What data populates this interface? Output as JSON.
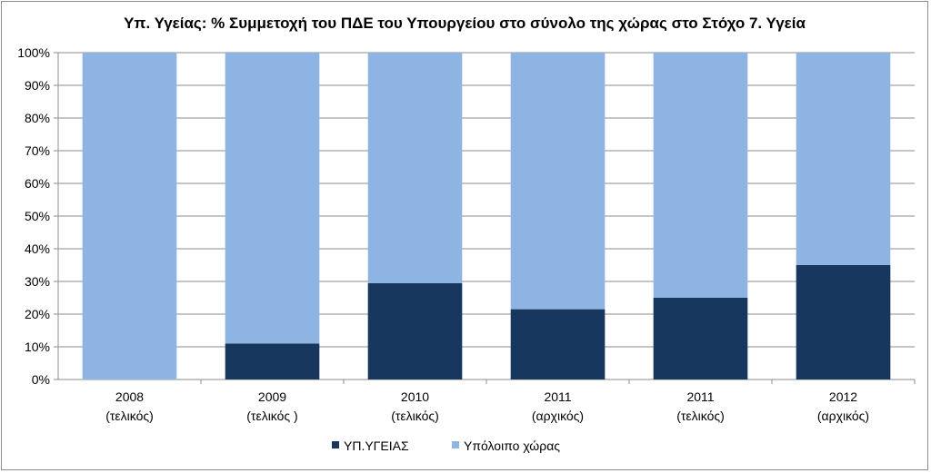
{
  "chart_data": {
    "type": "bar",
    "stacked": true,
    "percent_stacked": true,
    "title": "Υπ. Υγείας: % Συμμετοχή του ΠΔΕ του Υπουργείου στο σύνολο της χώρας στο Στόχο 7. Υγεία",
    "categories": [
      [
        "2008",
        "(τελικός)"
      ],
      [
        "2009",
        "(τελικός )"
      ],
      [
        "2010",
        "(τελικός)"
      ],
      [
        "2011",
        "(αρχικός)"
      ],
      [
        "2011",
        "(τελικός)"
      ],
      [
        "2012",
        "(αρχικός)"
      ]
    ],
    "series": [
      {
        "name": "ΥΠ.ΥΓΕΙΑΣ",
        "color": "#17375e",
        "values": [
          0,
          11,
          29.5,
          21.5,
          25,
          35
        ]
      },
      {
        "name": "Υπόλοιπο χώρας",
        "color": "#8eb4e3",
        "values": [
          100,
          89,
          70.5,
          78.5,
          75,
          65
        ]
      }
    ],
    "y_ticks": [
      "0%",
      "10%",
      "20%",
      "30%",
      "40%",
      "50%",
      "60%",
      "70%",
      "80%",
      "90%",
      "100%"
    ],
    "ylim": [
      0,
      100
    ],
    "grid": true,
    "legend_position": "bottom"
  }
}
